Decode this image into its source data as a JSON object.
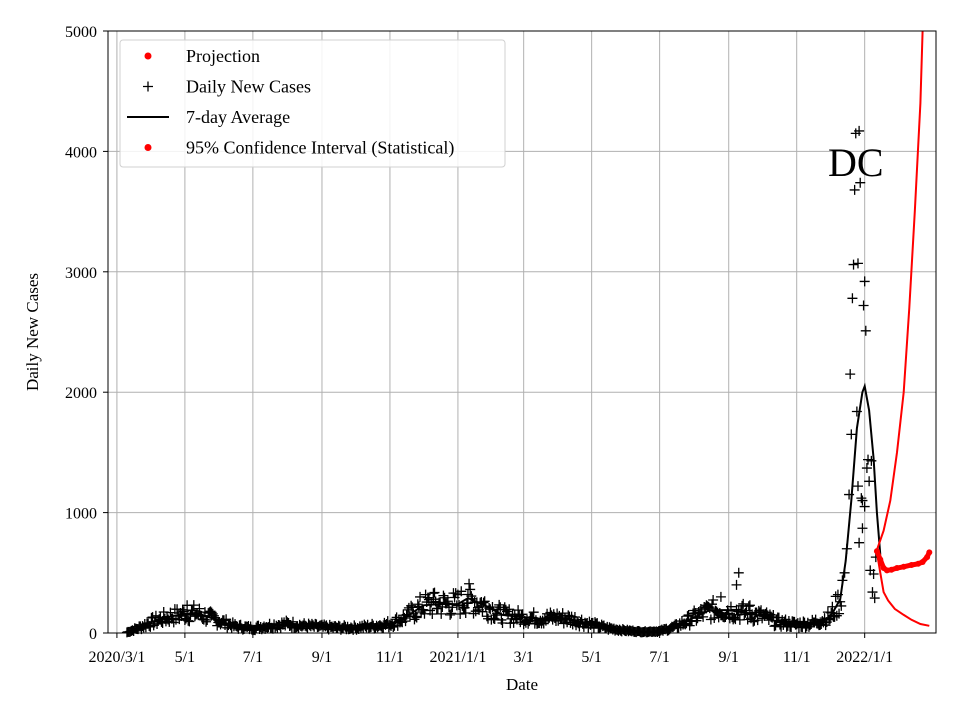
{
  "chart_data": {
    "type": "line",
    "title": "",
    "annotation": "DC",
    "xlabel": "Date",
    "ylabel": "Daily New Cases",
    "x_range": [
      "2020-02-22",
      "2022-03-06"
    ],
    "ylim": [
      0,
      5000
    ],
    "grid": true,
    "legend_position": "top-left",
    "x_ticks": [
      {
        "date": "2020-03-01",
        "label": "2020/3/1"
      },
      {
        "date": "2020-05-01",
        "label": "5/1"
      },
      {
        "date": "2020-07-01",
        "label": "7/1"
      },
      {
        "date": "2020-09-01",
        "label": "9/1"
      },
      {
        "date": "2020-11-01",
        "label": "11/1"
      },
      {
        "date": "2021-01-01",
        "label": "2021/1/1"
      },
      {
        "date": "2021-03-01",
        "label": "3/1"
      },
      {
        "date": "2021-05-01",
        "label": "5/1"
      },
      {
        "date": "2021-07-01",
        "label": "7/1"
      },
      {
        "date": "2021-09-01",
        "label": "9/1"
      },
      {
        "date": "2021-11-01",
        "label": "11/1"
      },
      {
        "date": "2022-01-01",
        "label": "2022/1/1"
      }
    ],
    "y_ticks": [
      0,
      1000,
      2000,
      3000,
      4000,
      5000
    ],
    "legend": [
      {
        "label": "Projection",
        "marker": "dot",
        "color": "#ff0000"
      },
      {
        "label": "Daily New Cases",
        "marker": "plus",
        "color": "#000000"
      },
      {
        "label": "7-day Average",
        "marker": "line",
        "color": "#000000"
      },
      {
        "label": "95% Confidence Interval (Statistical)",
        "marker": "dot",
        "color": "#ff0000"
      }
    ],
    "series": [
      {
        "name": "7-day Average",
        "color": "#000000",
        "points": [
          [
            "2020-03-10",
            5
          ],
          [
            "2020-03-20",
            40
          ],
          [
            "2020-04-01",
            90
          ],
          [
            "2020-04-15",
            130
          ],
          [
            "2020-05-01",
            160
          ],
          [
            "2020-05-10",
            165
          ],
          [
            "2020-05-20",
            140
          ],
          [
            "2020-06-01",
            100
          ],
          [
            "2020-06-15",
            55
          ],
          [
            "2020-07-01",
            40
          ],
          [
            "2020-07-15",
            60
          ],
          [
            "2020-08-01",
            75
          ],
          [
            "2020-08-15",
            60
          ],
          [
            "2020-09-01",
            50
          ],
          [
            "2020-09-15",
            45
          ],
          [
            "2020-10-01",
            45
          ],
          [
            "2020-10-15",
            55
          ],
          [
            "2020-11-01",
            75
          ],
          [
            "2020-11-15",
            130
          ],
          [
            "2020-12-01",
            230
          ],
          [
            "2020-12-15",
            240
          ],
          [
            "2021-01-01",
            240
          ],
          [
            "2021-01-10",
            290
          ],
          [
            "2021-01-25",
            230
          ],
          [
            "2021-02-10",
            150
          ],
          [
            "2021-03-01",
            130
          ],
          [
            "2021-03-15",
            120
          ],
          [
            "2021-04-01",
            130
          ],
          [
            "2021-04-15",
            110
          ],
          [
            "2021-05-01",
            70
          ],
          [
            "2021-05-15",
            40
          ],
          [
            "2021-06-01",
            20
          ],
          [
            "2021-06-15",
            10
          ],
          [
            "2021-07-01",
            15
          ],
          [
            "2021-07-15",
            50
          ],
          [
            "2021-08-01",
            130
          ],
          [
            "2021-08-15",
            190
          ],
          [
            "2021-09-01",
            190
          ],
          [
            "2021-09-15",
            170
          ],
          [
            "2021-10-01",
            140
          ],
          [
            "2021-10-15",
            90
          ],
          [
            "2021-11-01",
            70
          ],
          [
            "2021-11-15",
            80
          ],
          [
            "2021-12-01",
            130
          ],
          [
            "2021-12-10",
            280
          ],
          [
            "2021-12-15",
            600
          ],
          [
            "2021-12-20",
            1100
          ],
          [
            "2021-12-25",
            1700
          ],
          [
            "2021-12-30",
            2000
          ],
          [
            "2022-01-01",
            2050
          ],
          [
            "2022-01-05",
            1850
          ],
          [
            "2022-01-09",
            1450
          ],
          [
            "2022-01-12",
            1000
          ],
          [
            "2022-01-15",
            650
          ]
        ]
      },
      {
        "name": "Projection",
        "color": "#ff0000",
        "points": [
          [
            "2022-01-12",
            680
          ],
          [
            "2022-01-15",
            610
          ],
          [
            "2022-01-18",
            540
          ],
          [
            "2022-01-21",
            520
          ],
          [
            "2022-01-25",
            525
          ],
          [
            "2022-01-30",
            540
          ],
          [
            "2022-02-05",
            550
          ],
          [
            "2022-02-12",
            565
          ],
          [
            "2022-02-18",
            575
          ],
          [
            "2022-02-22",
            590
          ],
          [
            "2022-02-26",
            630
          ],
          [
            "2022-02-28",
            670
          ]
        ]
      },
      {
        "name": "95% Confidence Interval (Statistical)",
        "color": "#ff0000",
        "bounds": [
          {
            "label": "upper",
            "points": [
              [
                "2022-01-12",
                690
              ],
              [
                "2022-01-18",
                850
              ],
              [
                "2022-01-24",
                1100
              ],
              [
                "2022-01-30",
                1500
              ],
              [
                "2022-02-05",
                2000
              ],
              [
                "2022-02-10",
                2700
              ],
              [
                "2022-02-15",
                3500
              ],
              [
                "2022-02-20",
                4400
              ],
              [
                "2022-02-22",
                5000
              ]
            ]
          },
          {
            "label": "lower",
            "points": [
              [
                "2022-01-12",
                670
              ],
              [
                "2022-01-15",
                500
              ],
              [
                "2022-01-18",
                340
              ],
              [
                "2022-01-22",
                270
              ],
              [
                "2022-01-28",
                200
              ],
              [
                "2022-02-05",
                150
              ],
              [
                "2022-02-12",
                110
              ],
              [
                "2022-02-20",
                75
              ],
              [
                "2022-02-28",
                60
              ]
            ]
          }
        ]
      },
      {
        "name": "Daily New Cases",
        "color": "#000000",
        "marker": "plus",
        "points": [
          [
            "2021-12-14",
            500
          ],
          [
            "2021-12-16",
            700
          ],
          [
            "2021-12-18",
            1150
          ],
          [
            "2021-12-19",
            2150
          ],
          [
            "2021-12-20",
            1650
          ],
          [
            "2021-12-21",
            2780
          ],
          [
            "2021-12-22",
            3060
          ],
          [
            "2021-12-23",
            3680
          ],
          [
            "2021-12-24",
            4150
          ],
          [
            "2021-12-26",
            3070
          ],
          [
            "2021-12-27",
            4170
          ],
          [
            "2021-12-28",
            3740
          ],
          [
            "2021-12-29",
            1120
          ],
          [
            "2021-12-30",
            870
          ],
          [
            "2021-12-31",
            2720
          ],
          [
            "2022-01-01",
            2920
          ],
          [
            "2022-01-02",
            2510
          ],
          [
            "2022-01-03",
            1370
          ],
          [
            "2022-01-04",
            1440
          ],
          [
            "2022-01-05",
            1260
          ],
          [
            "2022-01-06",
            520
          ],
          [
            "2022-01-07",
            1430
          ],
          [
            "2022-01-08",
            340
          ],
          [
            "2022-01-09",
            490
          ],
          [
            "2022-01-10",
            290
          ],
          [
            "2022-01-11",
            630
          ],
          [
            "2021-12-25",
            1840
          ],
          [
            "2021-12-26",
            1220
          ],
          [
            "2021-12-27",
            750
          ],
          [
            "2021-12-30",
            1100
          ],
          [
            "2022-01-01",
            1050
          ],
          [
            "2021-09-10",
            500
          ],
          [
            "2021-09-08",
            400
          ],
          [
            "2021-09-20",
            230
          ],
          [
            "2021-08-25",
            300
          ],
          [
            "2020-12-10",
            330
          ],
          [
            "2021-01-10",
            320
          ],
          [
            "2020-05-03",
            230
          ]
        ]
      }
    ]
  }
}
